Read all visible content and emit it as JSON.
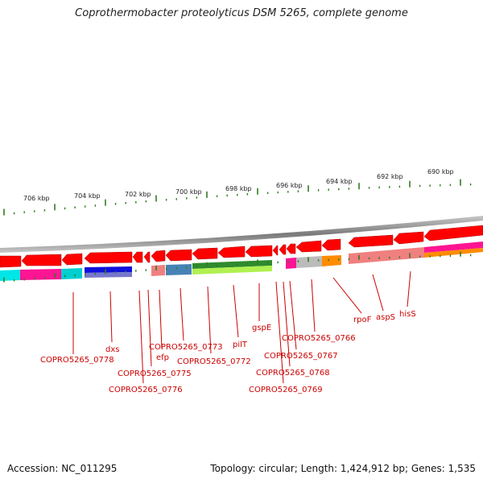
{
  "title": "Coprothermobacter proteolyticus DSM 5265, complete genome",
  "footer": {
    "accession": "Accession: NC_011295",
    "summary": "Topology: circular; Length: 1,424,912 bp; Genes: 1,535"
  },
  "colors": {
    "gene": "#ff0000",
    "gene_label": "#cc0000",
    "tick": "#2e7d1e",
    "backbone": "#9a9a9a"
  },
  "scale_labels": [
    "706 kbp",
    "704 kbp",
    "702 kbp",
    "700 kbp",
    "698 kbp",
    "696 kbp",
    "694 kbp",
    "692 kbp",
    "690 kbp"
  ],
  "gene_labels": [
    "COPRO5265_0778",
    "dxs",
    "COPRO5265_0776",
    "COPRO5265_0775",
    "efp",
    "COPRO5265_0773",
    "COPRO5265_0772",
    "pilT",
    "gspE",
    "COPRO5265_0769",
    "COPRO5265_0768",
    "COPRO5265_0767",
    "COPRO5265_0766",
    "rpoF",
    "aspS",
    "hisS"
  ]
}
